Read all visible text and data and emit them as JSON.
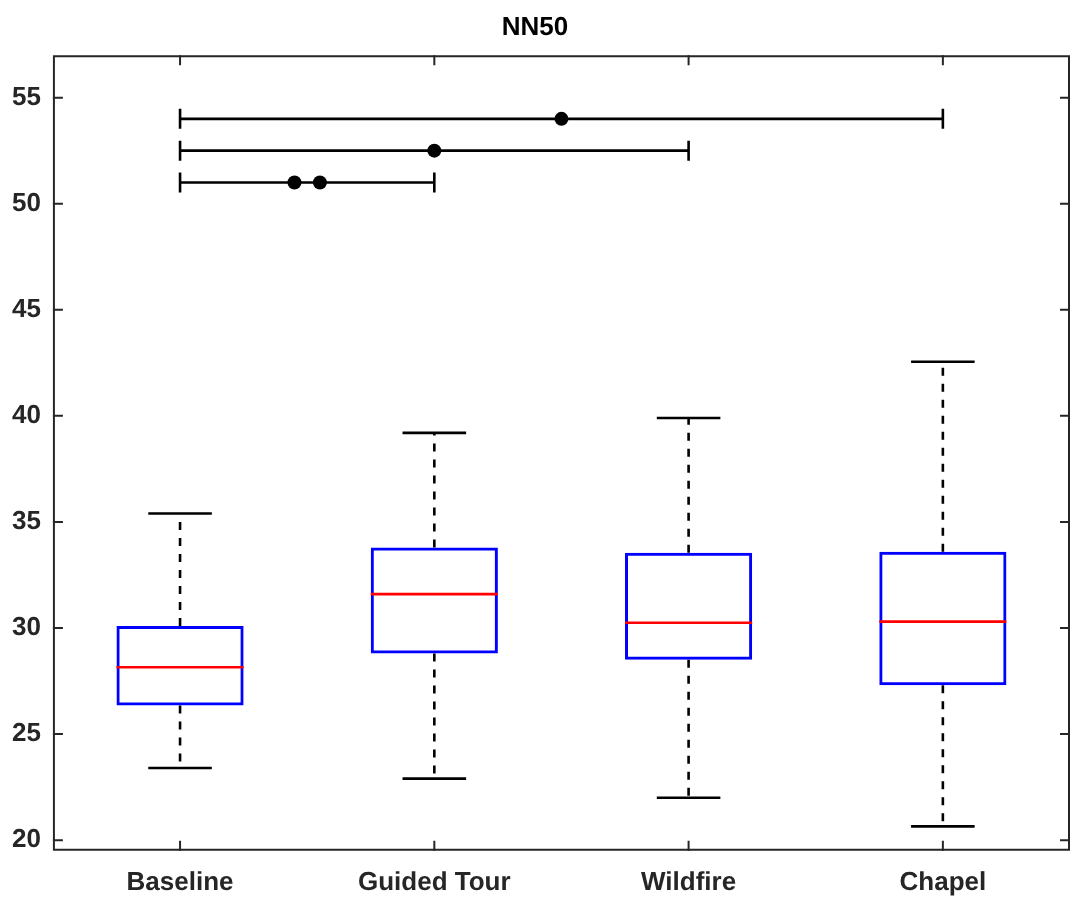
{
  "chart_data": {
    "type": "box",
    "title": "NN50",
    "categories": [
      "Baseline",
      "Guided Tour",
      "Wildfire",
      "Chapel"
    ],
    "series": [
      {
        "color": "#0000ff",
        "boxes": [
          {
            "low": 23.4,
            "q1": 26.35,
            "median": 28.15,
            "q3": 30.1,
            "high": 35.4
          },
          {
            "low": 22.9,
            "q1": 28.8,
            "median": 31.6,
            "q3": 33.8,
            "high": 39.2
          },
          {
            "low": 22.0,
            "q1": 28.5,
            "median": 30.25,
            "q3": 33.55,
            "high": 39.9
          },
          {
            "low": 20.65,
            "q1": 27.3,
            "median": 30.3,
            "q3": 33.6,
            "high": 42.55
          }
        ]
      }
    ],
    "ylim": [
      19.5,
      57
    ],
    "yticks": [
      20,
      25,
      30,
      35,
      40,
      45,
      50,
      55
    ],
    "grid": false,
    "legend": false
  }
}
